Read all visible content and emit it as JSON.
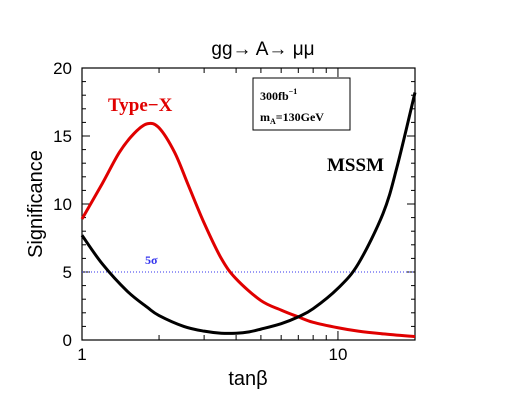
{
  "chart_data": {
    "type": "line",
    "title": "gg→ A→ μμ",
    "xlabel": "tanβ",
    "ylabel": "Significance",
    "x_scale": "log",
    "xlim": [
      1,
      20
    ],
    "ylim": [
      0,
      20
    ],
    "x_ticks": [
      {
        "value": 1,
        "label": "1"
      },
      {
        "value": 10,
        "label": "10"
      }
    ],
    "y_ticks": [
      {
        "value": 0,
        "label": "0"
      },
      {
        "value": 5,
        "label": "5"
      },
      {
        "value": 10,
        "label": "10"
      },
      {
        "value": 15,
        "label": "15"
      },
      {
        "value": 20,
        "label": "20"
      }
    ],
    "grid": false,
    "series": [
      {
        "name": "Type−X",
        "color": "#e00000",
        "x": [
          1,
          1.2,
          1.4,
          1.6,
          1.8,
          2.0,
          2.3,
          2.6,
          3.0,
          3.5,
          4,
          5,
          6,
          7,
          8,
          10,
          12,
          15,
          20
        ],
        "y": [
          8.9,
          11.5,
          13.8,
          15.2,
          15.9,
          15.6,
          13.8,
          11.4,
          8.6,
          6.0,
          4.5,
          2.9,
          2.2,
          1.7,
          1.3,
          0.9,
          0.65,
          0.45,
          0.25
        ]
      },
      {
        "name": "MSSM",
        "color": "#000000",
        "x": [
          1,
          1.2,
          1.5,
          1.8,
          2.0,
          2.5,
          3.0,
          3.5,
          4.0,
          4.5,
          5,
          6,
          7,
          8,
          10,
          12,
          15,
          17,
          20
        ],
        "y": [
          7.7,
          5.6,
          3.6,
          2.4,
          1.8,
          1.0,
          0.65,
          0.5,
          0.5,
          0.6,
          0.8,
          1.2,
          1.7,
          2.3,
          3.8,
          5.6,
          9.3,
          12.7,
          18.2
        ]
      }
    ],
    "reference_line": {
      "y": 5,
      "label": "5σ",
      "color": "#3333ee"
    },
    "annotations": {
      "luminosity_base": "300fb",
      "luminosity_sup": "−1",
      "mass_base": "m",
      "mass_sub": "A",
      "mass_value": "=130GeV"
    }
  }
}
